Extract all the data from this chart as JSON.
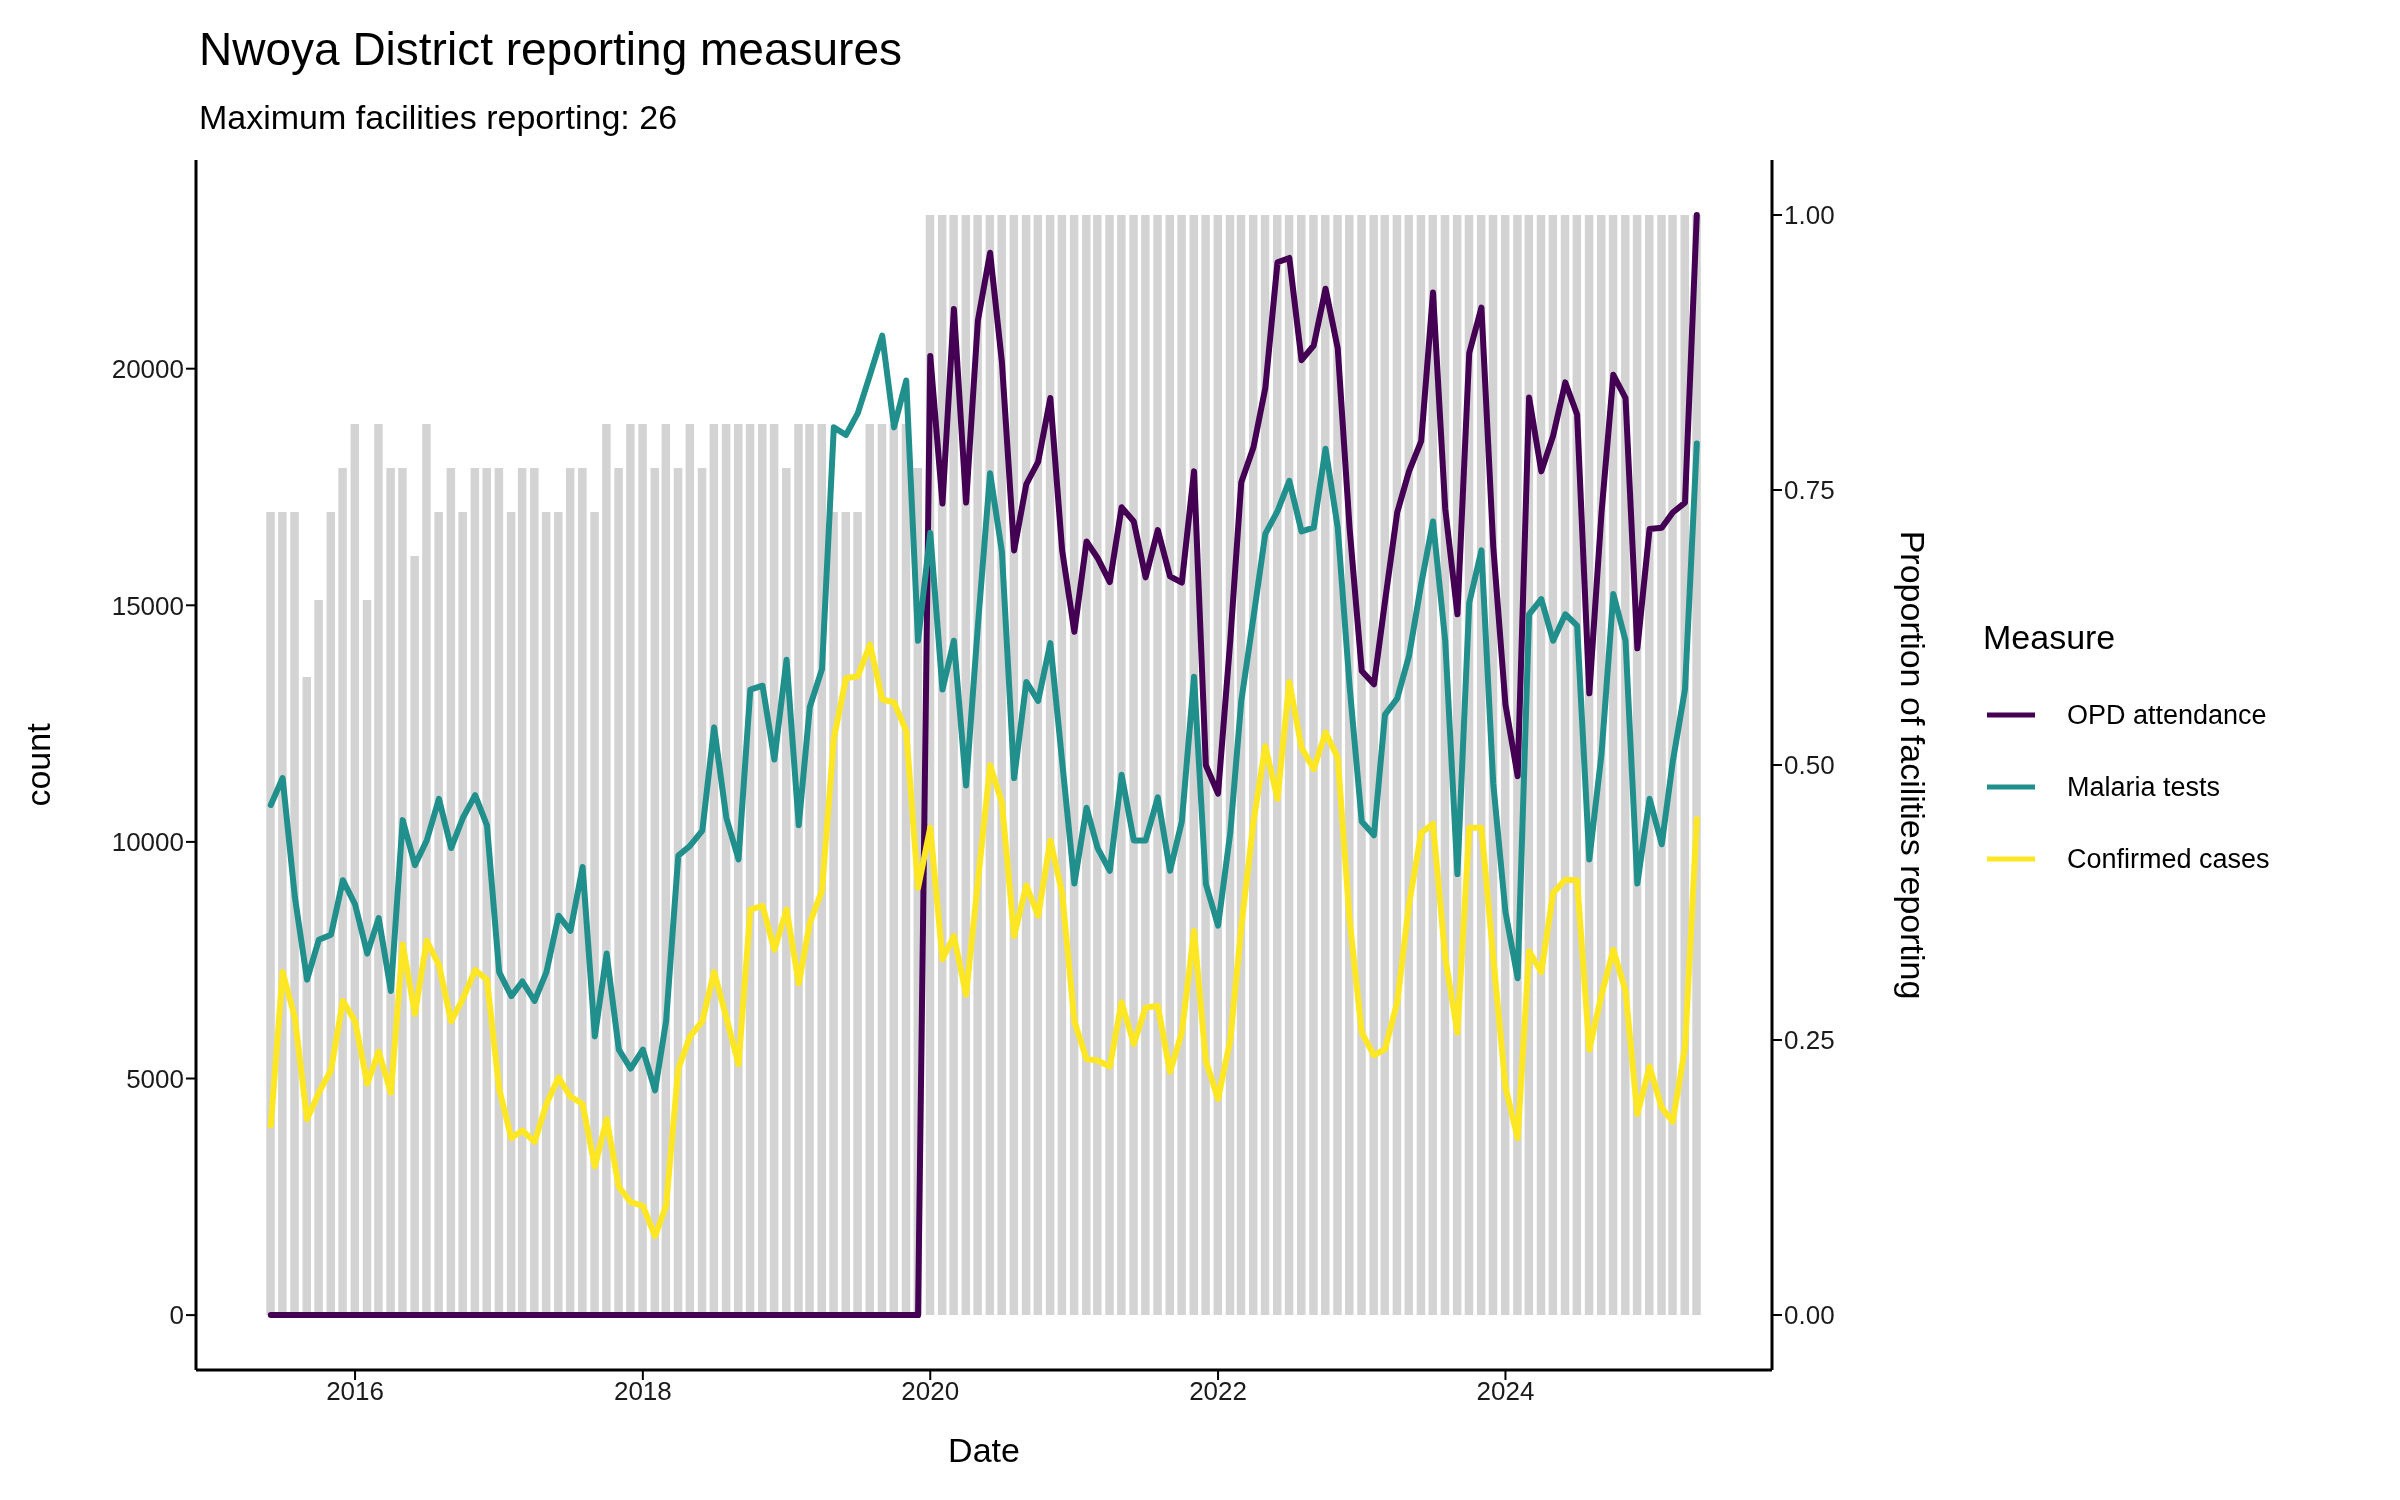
{
  "chart_data": {
    "type": "line",
    "title": "Nwoya District reporting measures",
    "subtitle": "Maximum facilities reporting: 26",
    "xlabel": "Date",
    "ylabel": "count",
    "y2label": "Proportion of facilities reporting",
    "legend_title": "Measure",
    "legend": "right",
    "x": [
      "2015-06",
      "2015-07",
      "2015-08",
      "2015-09",
      "2015-10",
      "2015-11",
      "2015-12",
      "2016-01",
      "2016-02",
      "2016-03",
      "2016-04",
      "2016-05",
      "2016-06",
      "2016-07",
      "2016-08",
      "2016-09",
      "2016-10",
      "2016-11",
      "2016-12",
      "2017-01",
      "2017-02",
      "2017-03",
      "2017-04",
      "2017-05",
      "2017-06",
      "2017-07",
      "2017-08",
      "2017-09",
      "2017-10",
      "2017-11",
      "2017-12",
      "2018-01",
      "2018-02",
      "2018-03",
      "2018-04",
      "2018-05",
      "2018-06",
      "2018-07",
      "2018-08",
      "2018-09",
      "2018-10",
      "2018-11",
      "2018-12",
      "2019-01",
      "2019-02",
      "2019-03",
      "2019-04",
      "2019-05",
      "2019-06",
      "2019-07",
      "2019-08",
      "2019-09",
      "2019-10",
      "2019-11",
      "2019-12",
      "2020-01",
      "2020-02",
      "2020-03",
      "2020-04",
      "2020-05",
      "2020-06",
      "2020-07",
      "2020-08",
      "2020-09",
      "2020-10",
      "2020-11",
      "2020-12",
      "2021-01",
      "2021-02",
      "2021-03",
      "2021-04",
      "2021-05",
      "2021-06",
      "2021-07",
      "2021-08",
      "2021-09",
      "2021-10",
      "2021-11",
      "2021-12",
      "2022-01",
      "2022-02",
      "2022-03",
      "2022-04",
      "2022-05",
      "2022-06",
      "2022-07",
      "2022-08",
      "2022-09",
      "2022-10",
      "2022-11",
      "2022-12",
      "2023-01",
      "2023-02",
      "2023-03",
      "2023-04",
      "2023-05",
      "2023-06",
      "2023-07",
      "2023-08",
      "2023-09",
      "2023-10",
      "2023-11",
      "2023-12",
      "2024-01",
      "2024-02",
      "2024-03",
      "2024-04",
      "2024-05",
      "2024-06",
      "2024-07",
      "2024-08",
      "2024-09",
      "2024-10",
      "2024-11",
      "2024-12",
      "2025-01",
      "2025-02",
      "2025-03",
      "2025-04",
      "2025-05"
    ],
    "xlim": [
      "2014-11-23",
      "2025-11-08"
    ],
    "xticks": [
      "2016",
      "2018",
      "2020",
      "2022",
      "2024"
    ],
    "ylim": [
      -1160,
      24410
    ],
    "yticks": [
      0,
      5000,
      10000,
      15000,
      20000
    ],
    "y2lim": [
      -0.05,
      1.05
    ],
    "y2ticks": [
      {
        "value": 0,
        "label": "0.00"
      },
      {
        "value": 0.25,
        "label": "0.25"
      },
      {
        "value": 0.5,
        "label": "0.50"
      },
      {
        "value": 0.75,
        "label": "0.75"
      },
      {
        "value": 1,
        "label": "1.00"
      }
    ],
    "series": [
      {
        "type": "bar",
        "axis": "y2",
        "color": "#d3d3d3",
        "values": [
          0.73,
          0.73,
          0.73,
          0.58,
          0.65,
          0.73,
          0.77,
          0.81,
          0.65,
          0.81,
          0.77,
          0.77,
          0.69,
          0.81,
          0.73,
          0.77,
          0.73,
          0.77,
          0.77,
          0.77,
          0.73,
          0.77,
          0.77,
          0.73,
          0.73,
          0.77,
          0.77,
          0.73,
          0.81,
          0.77,
          0.81,
          0.81,
          0.77,
          0.81,
          0.77,
          0.81,
          0.77,
          0.81,
          0.81,
          0.81,
          0.81,
          0.81,
          0.81,
          0.77,
          0.81,
          0.81,
          0.81,
          0.73,
          0.73,
          0.73,
          0.81,
          0.81,
          0.81,
          0.81,
          0.77,
          1,
          1,
          1,
          1,
          1,
          1,
          1,
          1,
          1,
          1,
          1,
          1,
          1,
          1,
          1,
          1,
          1,
          1,
          1,
          1,
          1,
          1,
          1,
          1,
          1,
          1,
          1,
          1,
          1,
          1,
          1,
          1,
          1,
          1,
          1,
          1,
          1,
          1,
          1,
          1,
          1,
          1,
          1,
          1,
          1,
          1,
          1,
          1,
          1,
          1,
          1,
          1,
          1,
          1,
          1,
          1,
          1,
          1,
          1,
          1,
          1,
          1,
          1,
          1,
          1
        ]
      },
      {
        "name": "OPD attendance",
        "color": "#440154",
        "values": [
          0,
          0,
          0,
          0,
          0,
          0,
          0,
          0,
          0,
          0,
          0,
          0,
          0,
          0,
          0,
          0,
          0,
          0,
          0,
          0,
          0,
          0,
          0,
          0,
          0,
          0,
          0,
          0,
          0,
          0,
          0,
          0,
          0,
          0,
          0,
          0,
          0,
          0,
          0,
          0,
          0,
          0,
          0,
          0,
          0,
          0,
          0,
          0,
          0,
          0,
          0,
          0,
          0,
          0,
          0,
          20270,
          17150,
          21260,
          17170,
          21020,
          22450,
          20140,
          16160,
          17560,
          18030,
          19380,
          16160,
          14440,
          16350,
          16000,
          15490,
          17070,
          16770,
          15590,
          16590,
          15610,
          15480,
          17830,
          11620,
          11020,
          14250,
          17600,
          18340,
          19590,
          22250,
          22340,
          20180,
          20490,
          21690,
          20430,
          16640,
          13610,
          13330,
          15080,
          16960,
          17830,
          18470,
          21610,
          17040,
          14810,
          20330,
          21290,
          16240,
          12900,
          11390,
          19390,
          17830,
          18580,
          19710,
          19030,
          13140,
          16960,
          19870,
          19380,
          14090,
          16610,
          16640,
          16960,
          17170,
          23250
        ]
      },
      {
        "name": "Malaria tests",
        "color": "#21908c",
        "values": [
          10780,
          11350,
          8840,
          7090,
          7930,
          8040,
          9190,
          8680,
          7640,
          8390,
          6850,
          10460,
          9510,
          10030,
          10910,
          9870,
          10510,
          10990,
          10350,
          7250,
          6740,
          7050,
          6640,
          7250,
          8440,
          8120,
          9470,
          5890,
          7640,
          5610,
          5210,
          5610,
          4750,
          6210,
          9710,
          9920,
          10240,
          12420,
          10510,
          9630,
          13220,
          13300,
          11740,
          13850,
          10350,
          12850,
          13650,
          18760,
          18600,
          19060,
          19870,
          20700,
          18760,
          19750,
          14250,
          16530,
          13220,
          14250,
          11190,
          14570,
          17790,
          16130,
          11350,
          13380,
          12980,
          14200,
          11700,
          9120,
          10720,
          9870,
          9390,
          11420,
          10030,
          10030,
          10940,
          9390,
          10430,
          13490,
          9110,
          8230,
          10190,
          12980,
          14750,
          16510,
          16990,
          17630,
          16560,
          16640,
          18310,
          16640,
          13300,
          10430,
          10140,
          12690,
          13030,
          13930,
          15450,
          16770,
          14250,
          9320,
          15050,
          16160,
          11230,
          8520,
          7120,
          14810,
          15130,
          14250,
          14810,
          14570,
          9630,
          11860,
          15240,
          14250,
          9120,
          10910,
          9950,
          11700,
          13220,
          18420
        ]
      },
      {
        "name": "Confirmed cases",
        "color": "#fde725",
        "values": [
          4010,
          7250,
          6290,
          4140,
          4700,
          5180,
          6640,
          6210,
          4890,
          5570,
          4700,
          7830,
          6370,
          7910,
          7400,
          6210,
          6690,
          7290,
          7090,
          4780,
          3740,
          3900,
          3660,
          4460,
          5020,
          4620,
          4460,
          3140,
          4140,
          2710,
          2390,
          2310,
          1670,
          2310,
          5210,
          5890,
          6210,
          7250,
          6290,
          5300,
          8570,
          8650,
          7720,
          8570,
          7010,
          8280,
          8970,
          12180,
          13460,
          13500,
          14170,
          13010,
          12950,
          12340,
          9030,
          10300,
          7520,
          8010,
          6770,
          9160,
          11620,
          10830,
          8010,
          9080,
          8440,
          10030,
          8920,
          6210,
          5410,
          5380,
          5250,
          6610,
          5730,
          6500,
          6530,
          5140,
          5970,
          8120,
          5370,
          4570,
          5810,
          8200,
          10430,
          12020,
          10910,
          13380,
          11990,
          11540,
          12310,
          11780,
          8360,
          5970,
          5490,
          5620,
          6610,
          8680,
          10190,
          10380,
          7560,
          5970,
          10300,
          10300,
          7560,
          4820,
          3740,
          7690,
          7250,
          8920,
          9200,
          9190,
          5610,
          6770,
          7720,
          6850,
          4250,
          5250,
          4380,
          4090,
          5650,
          10480
        ]
      }
    ]
  }
}
